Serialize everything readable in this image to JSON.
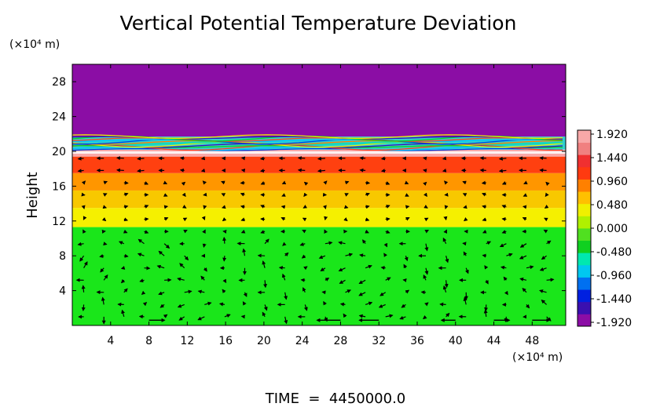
{
  "chart_data": {
    "type": "heatmap",
    "title": "Vertical Potential Temperature Deviation",
    "ylabel": "Height",
    "y_unit": "(×10⁴ m)",
    "x_unit": "(×10⁴ m)",
    "xlim": [
      0,
      51.5
    ],
    "ylim": [
      0,
      30
    ],
    "x_ticks": [
      4,
      8,
      12,
      16,
      20,
      24,
      28,
      32,
      36,
      40,
      44,
      48
    ],
    "y_ticks": [
      4,
      8,
      12,
      16,
      20,
      24,
      28
    ],
    "time_label": "TIME  =  4450000.0",
    "colorbar": {
      "min": -1.92,
      "max": 1.92,
      "tick_labels": [
        "1.920",
        "1.440",
        "0.960",
        "0.480",
        "0.000",
        "-0.480",
        "-0.960",
        "-1.440",
        "-1.920"
      ],
      "colors": [
        "#8b0da5",
        "#3a10b0",
        "#0020e0",
        "#0070f0",
        "#00c8f0",
        "#00e8b0",
        "#10d020",
        "#50e020",
        "#b0f000",
        "#f0f000",
        "#ffc000",
        "#ff8000",
        "#ff3a10",
        "#f03030",
        "#f08080",
        "#f8a8a8"
      ]
    },
    "layers": [
      {
        "y_from": 0,
        "y_to": 11.3,
        "value": 0.05,
        "color": "#1ae61a"
      },
      {
        "y_from": 11.3,
        "y_to": 13.5,
        "value": 0.8,
        "color": "#f5f000"
      },
      {
        "y_from": 13.5,
        "y_to": 15.5,
        "value": 1.05,
        "color": "#f8c800"
      },
      {
        "y_from": 15.5,
        "y_to": 17.5,
        "value": 1.3,
        "color": "#ff9600"
      },
      {
        "y_from": 17.5,
        "y_to": 19.4,
        "value": 1.6,
        "color": "#ff4010"
      },
      {
        "y_from": 19.4,
        "y_to": 20.2,
        "value": 1.92,
        "color": "#f8a8a8"
      },
      {
        "y_from": 20.2,
        "y_to": 21.7,
        "value": 0.0,
        "color": "#30d0d0"
      },
      {
        "y_from": 21.7,
        "y_to": 30,
        "value": -1.92,
        "color": "#8b0da5"
      }
    ]
  }
}
